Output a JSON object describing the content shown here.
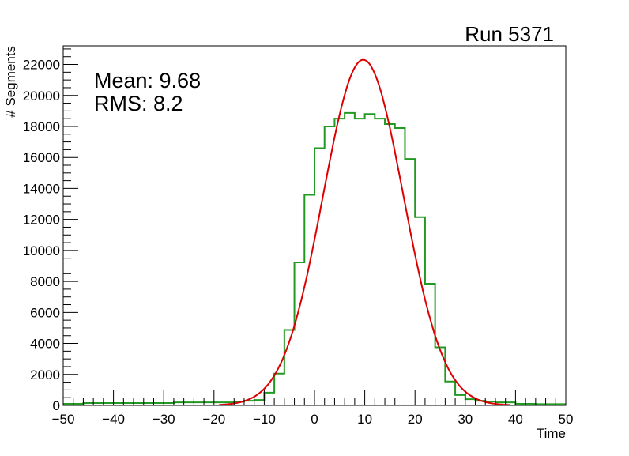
{
  "chart_data": {
    "type": "bar",
    "title": "Run 5371",
    "xlabel": "Time",
    "ylabel": "# Segments",
    "xlim": [
      -50,
      50
    ],
    "ylim": [
      0,
      23200
    ],
    "bin_width": 2,
    "x_ticks": [
      "-50",
      "-40",
      "-30",
      "-20",
      "-10",
      "0",
      "10",
      "20",
      "30",
      "40",
      "50"
    ],
    "y_ticks": [
      "0",
      "2000",
      "4000",
      "6000",
      "8000",
      "10000",
      "12000",
      "14000",
      "16000",
      "18000",
      "20000",
      "22000"
    ],
    "stats": {
      "mean_label": "Mean: 9.68",
      "rms_label": "RMS:  8.2"
    },
    "series": [
      {
        "name": "histogram",
        "color": "#229922",
        "bin_low_edges": [
          -50,
          -48,
          -46,
          -44,
          -42,
          -40,
          -38,
          -36,
          -34,
          -32,
          -30,
          -28,
          -26,
          -24,
          -22,
          -20,
          -18,
          -16,
          -14,
          -12,
          -10,
          -8,
          -6,
          -4,
          -2,
          0,
          2,
          4,
          6,
          8,
          10,
          12,
          14,
          16,
          18,
          20,
          22,
          24,
          26,
          28,
          30,
          32,
          34,
          36,
          38,
          40,
          42,
          44,
          46,
          48
        ],
        "values": [
          100,
          100,
          150,
          150,
          150,
          150,
          150,
          150,
          150,
          150,
          150,
          200,
          200,
          200,
          200,
          200,
          200,
          250,
          300,
          350,
          820,
          2050,
          4870,
          9230,
          13590,
          16600,
          18000,
          18500,
          18870,
          18500,
          18800,
          18500,
          18150,
          17900,
          15900,
          12150,
          7850,
          3750,
          1540,
          670,
          400,
          300,
          250,
          200,
          200,
          100,
          100,
          80,
          80,
          80
        ]
      },
      {
        "name": "gaussian-fit",
        "color": "#dd0000",
        "function": "gaus",
        "amplitude": 22300,
        "mean": 9.7,
        "sigma": 8.0
      }
    ]
  }
}
